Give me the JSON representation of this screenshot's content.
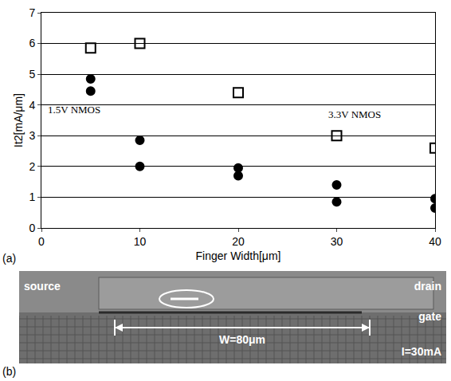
{
  "chart_data": {
    "type": "scatter",
    "x_label": "Finger Width[μm]",
    "y_label": "It2[mA/μm]",
    "series": [
      {
        "name": "1.5V NMOS",
        "color": "#000000",
        "marker": "circle",
        "x": [
          5,
          5,
          10,
          10,
          20,
          20,
          30,
          30,
          40,
          40
        ],
        "values": [
          4.85,
          4.45,
          2.85,
          2.0,
          1.95,
          1.7,
          1.4,
          0.85,
          0.95,
          0.65
        ]
      },
      {
        "name": "3.3V NMOS",
        "color": "#000000",
        "marker": "square-open",
        "x": [
          5,
          10,
          20,
          30,
          40
        ],
        "values": [
          5.85,
          6.0,
          4.4,
          3.0,
          2.6
        ]
      }
    ],
    "xlim": [
      0,
      40
    ],
    "xticks": [
      0,
      10,
      20,
      30,
      40
    ],
    "ylim": [
      0,
      7
    ],
    "yticks": [
      0,
      1,
      2,
      3,
      4,
      5,
      6,
      7
    ],
    "grid": true
  },
  "panel_labels": [
    "(a)",
    "(b)"
  ],
  "photo_b": {
    "source": "source",
    "drain": "drain",
    "gate": "gate",
    "width_label": "W=80μm",
    "current_label": "I=30mA"
  }
}
